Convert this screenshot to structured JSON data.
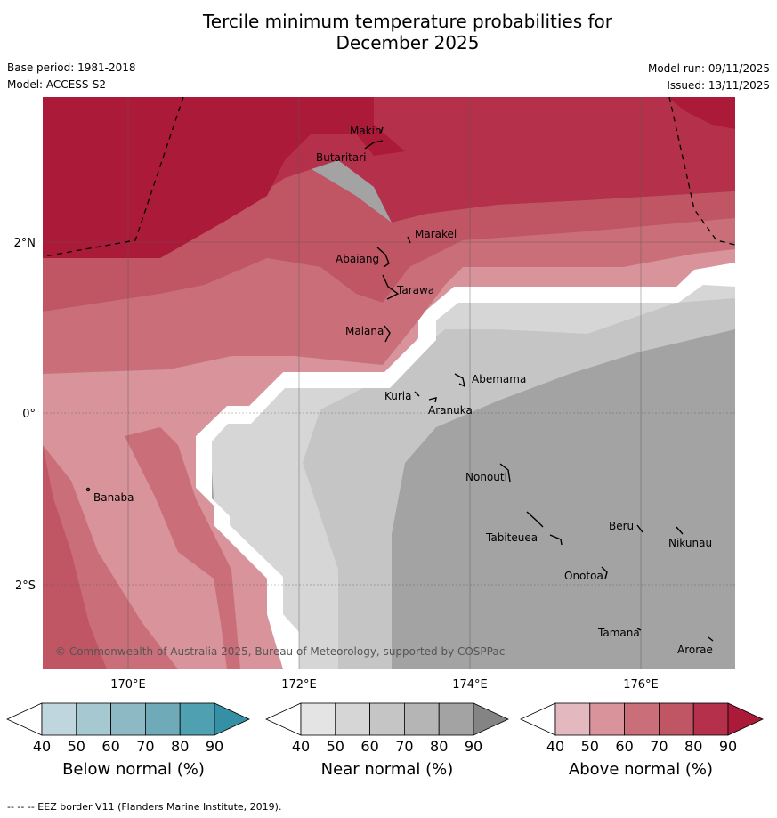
{
  "title_line1": "Tercile minimum temperature probabilities for",
  "title_line2": "December 2025",
  "base_period": "Base period: 1981-2018",
  "model": "Model: ACCESS-S2",
  "model_run": "Model run: 09/11/2025",
  "issued": "Issued: 13/11/2025",
  "copyright": "© Commonwealth of Australia 2025, Bureau of Meteorology, supported by COSPPac",
  "footer": "--  --  -- EEZ border V11 (Flanders Marine Institute, 2019).",
  "axes": {
    "lat_labels": [
      "2°N",
      "0°",
      "2°S"
    ],
    "lon_labels": [
      "170°E",
      "172°E",
      "174°E",
      "176°E"
    ]
  },
  "islands": [
    {
      "name": "Makin"
    },
    {
      "name": "Butaritari"
    },
    {
      "name": "Marakei"
    },
    {
      "name": "Abaiang"
    },
    {
      "name": "Tarawa"
    },
    {
      "name": "Maiana"
    },
    {
      "name": "Abemama"
    },
    {
      "name": "Kuria"
    },
    {
      "name": "Aranuka"
    },
    {
      "name": "Banaba"
    },
    {
      "name": "Nonouti"
    },
    {
      "name": "Beru"
    },
    {
      "name": "Nikunau"
    },
    {
      "name": "Tabiteuea"
    },
    {
      "name": "Onotoa"
    },
    {
      "name": "Tamana"
    },
    {
      "name": "Arorae"
    }
  ],
  "colorbars": [
    {
      "label": "Below normal (%)",
      "ticks": [
        "40",
        "50",
        "60",
        "70",
        "80",
        "90"
      ],
      "colors": [
        "#c0d6de",
        "#a6c8d0",
        "#8cb9c4",
        "#6eaab8",
        "#4fa0b0",
        "#3590a6"
      ]
    },
    {
      "label": "Near normal (%)",
      "ticks": [
        "40",
        "50",
        "60",
        "70",
        "80",
        "90"
      ],
      "colors": [
        "#e4e4e4",
        "#d6d6d6",
        "#c5c5c5",
        "#b5b5b5",
        "#a3a3a3",
        "#848484"
      ]
    },
    {
      "label": "Above normal (%)",
      "ticks": [
        "40",
        "50",
        "60",
        "70",
        "80",
        "90"
      ],
      "colors": [
        "#e3b8bf",
        "#d8939b",
        "#ca6f79",
        "#c05563",
        "#b5304a",
        "#ac1a3a"
      ]
    }
  ]
}
